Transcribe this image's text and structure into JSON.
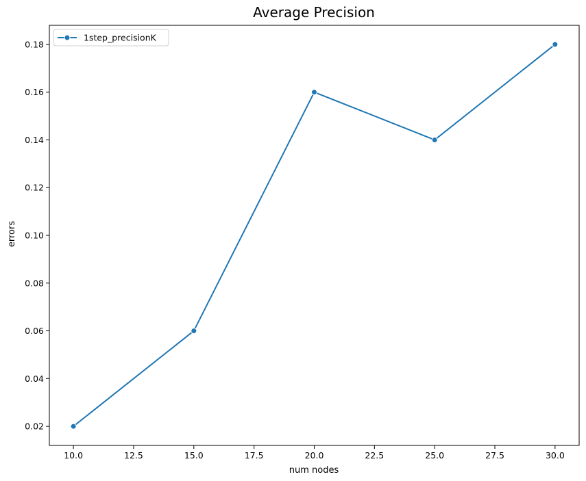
{
  "chart_data": {
    "type": "line",
    "title": "Average Precision",
    "xlabel": "num nodes",
    "ylabel": "errors",
    "xlim": [
      9.0,
      31.0
    ],
    "ylim": [
      0.012,
      0.188
    ],
    "xticks": [
      10.0,
      12.5,
      15.0,
      17.5,
      20.0,
      22.5,
      25.0,
      27.5,
      30.0
    ],
    "xtick_labels": [
      "10.0",
      "12.5",
      "15.0",
      "17.5",
      "20.0",
      "22.5",
      "25.0",
      "27.5",
      "30.0"
    ],
    "yticks": [
      0.02,
      0.04,
      0.06,
      0.08,
      0.1,
      0.12,
      0.14,
      0.16,
      0.18
    ],
    "ytick_labels": [
      "0.02",
      "0.04",
      "0.06",
      "0.08",
      "0.10",
      "0.12",
      "0.14",
      "0.16",
      "0.18"
    ],
    "grid": false,
    "legend_position": "top-left",
    "series": [
      {
        "name": "1step_precisionK",
        "color": "#1f77b4",
        "marker": "circle",
        "x": [
          10,
          15,
          20,
          25,
          30
        ],
        "y": [
          0.02,
          0.06,
          0.16,
          0.14,
          0.18
        ]
      }
    ]
  }
}
